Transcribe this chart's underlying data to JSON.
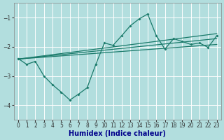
{
  "xlabel": "Humidex (Indice chaleur)",
  "xlim": [
    -0.5,
    23.5
  ],
  "ylim": [
    -4.5,
    -0.5
  ],
  "yticks": [
    -4,
    -3,
    -2,
    -1
  ],
  "xticks": [
    0,
    1,
    2,
    3,
    4,
    5,
    6,
    7,
    8,
    9,
    10,
    11,
    12,
    13,
    14,
    15,
    16,
    17,
    18,
    19,
    20,
    21,
    22,
    23
  ],
  "bg_color": "#b2dede",
  "grid_color": "#ffffff",
  "line_color": "#1a7a6a",
  "spiky_x": [
    0,
    1,
    2,
    3,
    4,
    5,
    6,
    7,
    8,
    9,
    10,
    11,
    12,
    13,
    14,
    15,
    16,
    17,
    18,
    19,
    20,
    21,
    22,
    23
  ],
  "spiky_y": [
    -2.4,
    -2.6,
    -2.5,
    -3.0,
    -3.3,
    -3.55,
    -3.82,
    -3.62,
    -3.4,
    -2.6,
    -1.87,
    -1.95,
    -1.62,
    -1.28,
    -1.05,
    -0.88,
    -1.62,
    -2.08,
    -1.72,
    -1.82,
    -1.92,
    -1.87,
    -2.02,
    -1.62
  ],
  "trend1_x": [
    0,
    23
  ],
  "trend1_y": [
    -2.42,
    -1.72
  ],
  "trend2_x": [
    0,
    23
  ],
  "trend2_y": [
    -2.42,
    -1.55
  ],
  "trend3_x": [
    0,
    23
  ],
  "trend3_y": [
    -2.42,
    -1.92
  ]
}
